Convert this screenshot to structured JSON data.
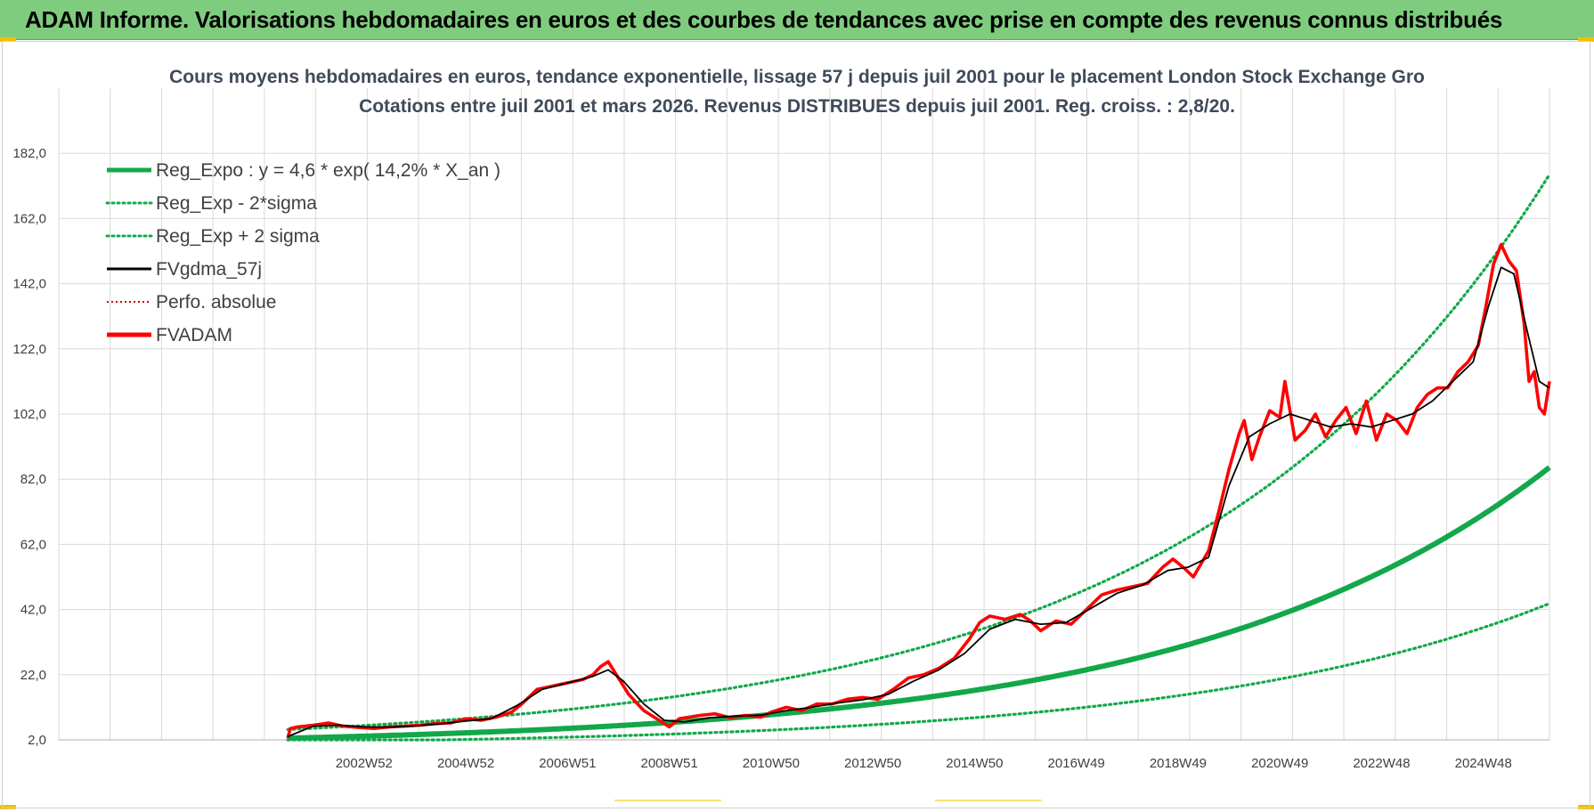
{
  "header": {
    "title": "ADAM Informe. Valorisations hebdomadaires en euros et des courbes de tendances avec prise en compte des revenus connus distribués"
  },
  "colors": {
    "banner": "#7fcc7f",
    "reg_green": "#12a84a",
    "fvgdma": "#000000",
    "fvadam": "#ff0000",
    "perfo": "#c00000",
    "grid": "#d9d9d9"
  },
  "chart_data": {
    "type": "line",
    "title_line1": "Cours moyens hebdomadaires en euros, tendance exponentielle, lissage 57 j depuis juil 2001 pour le placement London Stock Exchange Gro",
    "title_line2": "Cotations entre juil 2001 et mars 2026. Revenus DISTRIBUES depuis juil 2001. Reg. croiss. : 2,8/20.",
    "ylim": [
      2,
      202
    ],
    "y_ticks": [
      "2,0",
      "22,0",
      "42,0",
      "62,0",
      "82,0",
      "102,0",
      "122,0",
      "142,0",
      "162,0",
      "182,0"
    ],
    "y_tick_values": [
      2,
      22,
      42,
      62,
      82,
      102,
      122,
      142,
      162,
      182
    ],
    "x_range": [
      1997.0,
      2026.3
    ],
    "x_ticks": [
      {
        "label": "2002W52",
        "year": 2003.0
      },
      {
        "label": "2004W52",
        "year": 2005.0
      },
      {
        "label": "2006W51",
        "year": 2007.0
      },
      {
        "label": "2008W51",
        "year": 2009.0
      },
      {
        "label": "2010W50",
        "year": 2011.0
      },
      {
        "label": "2012W50",
        "year": 2013.0
      },
      {
        "label": "2014W50",
        "year": 2015.0
      },
      {
        "label": "2016W49",
        "year": 2017.0
      },
      {
        "label": "2018W49",
        "year": 2019.0
      },
      {
        "label": "2020W49",
        "year": 2021.0
      },
      {
        "label": "2022W48",
        "year": 2023.0
      },
      {
        "label": "2024W48",
        "year": 2025.0
      }
    ],
    "regression": {
      "a": 4.6,
      "rate": 0.142,
      "start_year": 2001.5,
      "end_year": 2026.3,
      "sigma_factor": 2.05
    },
    "legend": [
      {
        "label": "Reg_Expo : y = 4,6 * exp( 14,2% *  X_an )",
        "style": "solid-thick",
        "color": "#12a84a"
      },
      {
        "label": "Reg_Exp - 2*sigma",
        "style": "dotted",
        "color": "#12a84a"
      },
      {
        "label": "Reg_Exp + 2 sigma",
        "style": "dotted",
        "color": "#12a84a"
      },
      {
        "label": "FVgdma_57j",
        "style": "solid",
        "color": "#000000"
      },
      {
        "label": "Perfo. absolue",
        "style": "dotted-thin",
        "color": "#c00000"
      },
      {
        "label": "FVADAM",
        "style": "solid-thick",
        "color": "#ff0000"
      }
    ],
    "series": [
      {
        "name": "FVADAM",
        "x": [
          2001.5,
          2001.55,
          2001.7,
          2002.0,
          2002.3,
          2002.6,
          2002.9,
          2003.2,
          2003.5,
          2003.8,
          2004.1,
          2004.4,
          2004.7,
          2005.0,
          2005.3,
          2005.6,
          2005.9,
          2006.1,
          2006.4,
          2006.7,
          2007.0,
          2007.3,
          2007.5,
          2007.65,
          2007.8,
          2008.0,
          2008.2,
          2008.5,
          2008.8,
          2009.0,
          2009.2,
          2009.4,
          2009.6,
          2009.9,
          2010.2,
          2010.5,
          2010.8,
          2011.0,
          2011.3,
          2011.6,
          2011.9,
          2012.2,
          2012.5,
          2012.8,
          2013.1,
          2013.4,
          2013.7,
          2014.0,
          2014.3,
          2014.6,
          2014.9,
          2015.1,
          2015.3,
          2015.6,
          2015.9,
          2016.1,
          2016.3,
          2016.6,
          2016.9,
          2017.2,
          2017.5,
          2017.8,
          2018.1,
          2018.4,
          2018.7,
          2018.9,
          2019.1,
          2019.3,
          2019.6,
          2019.8,
          2020.0,
          2020.2,
          2020.3,
          2020.45,
          2020.6,
          2020.8,
          2021.0,
          2021.1,
          2021.3,
          2021.5,
          2021.7,
          2021.9,
          2022.1,
          2022.3,
          2022.5,
          2022.7,
          2022.9,
          2023.1,
          2023.3,
          2023.5,
          2023.7,
          2023.9,
          2024.1,
          2024.3,
          2024.5,
          2024.7,
          2024.9,
          2025.05,
          2025.2,
          2025.35,
          2025.5,
          2025.65,
          2025.8,
          2025.9,
          2026.0,
          2026.1,
          2026.2,
          2026.3
        ],
        "values": [
          2.5,
          5.5,
          6.0,
          6.5,
          7.2,
          6.2,
          5.8,
          5.5,
          6.0,
          6.2,
          6.5,
          7.0,
          7.2,
          8.5,
          8.0,
          9.0,
          10.5,
          13.0,
          17.5,
          18.5,
          19.5,
          20.5,
          22.0,
          24.5,
          26.0,
          21.0,
          16.0,
          11.0,
          8.0,
          6.0,
          8.5,
          9.0,
          9.5,
          10.0,
          8.8,
          9.5,
          9.0,
          10.5,
          12.0,
          11.0,
          13.0,
          13.0,
          14.5,
          15.0,
          14.5,
          17.5,
          21.0,
          22.0,
          24.0,
          27.0,
          33.0,
          38.0,
          40.0,
          39.0,
          40.5,
          38.5,
          35.5,
          38.5,
          37.5,
          42.0,
          46.5,
          48.0,
          49.0,
          50.0,
          55.0,
          57.5,
          55.0,
          52.0,
          60.0,
          72.0,
          85.0,
          96.0,
          100.0,
          88.0,
          95.0,
          103.0,
          101.0,
          112.0,
          94.0,
          97.0,
          102.0,
          95.0,
          100.0,
          104.0,
          96.0,
          106.0,
          94.0,
          102.0,
          100.0,
          96.0,
          104.0,
          108.0,
          110.0,
          110.0,
          115.0,
          118.0,
          123.0,
          135.0,
          148.0,
          154.0,
          149.0,
          146.0,
          130.0,
          112.0,
          115.0,
          104.0,
          102.0,
          112.0
        ]
      },
      {
        "name": "FVgdma_57j",
        "x": [
          2001.5,
          2002.0,
          2002.5,
          2003.0,
          2003.5,
          2004.0,
          2004.5,
          2005.0,
          2005.5,
          2006.0,
          2006.5,
          2007.0,
          2007.5,
          2007.8,
          2008.1,
          2008.5,
          2008.9,
          2009.3,
          2009.8,
          2010.3,
          2010.8,
          2011.3,
          2011.8,
          2012.3,
          2012.8,
          2013.3,
          2013.8,
          2014.3,
          2014.8,
          2015.3,
          2015.8,
          2016.3,
          2016.8,
          2017.3,
          2017.8,
          2018.3,
          2018.8,
          2019.2,
          2019.6,
          2020.0,
          2020.4,
          2020.8,
          2021.2,
          2021.6,
          2022.0,
          2022.4,
          2022.8,
          2023.2,
          2023.6,
          2024.0,
          2024.4,
          2024.8,
          2025.1,
          2025.35,
          2025.6,
          2025.9,
          2026.1,
          2026.3
        ],
        "values": [
          3.0,
          6.2,
          6.5,
          6.0,
          5.9,
          6.3,
          6.9,
          7.8,
          8.5,
          12.5,
          17.5,
          19.5,
          21.5,
          23.5,
          20.0,
          13.0,
          8.0,
          7.5,
          8.8,
          9.3,
          9.6,
          11.0,
          12.0,
          13.3,
          14.3,
          16.0,
          20.0,
          23.5,
          28.5,
          36.0,
          39.0,
          37.5,
          38.0,
          42.5,
          47.0,
          49.5,
          54.0,
          55.0,
          58.0,
          80.0,
          95.0,
          99.0,
          102.0,
          100.0,
          98.0,
          99.0,
          98.0,
          100.0,
          102.0,
          106.0,
          112.0,
          118.0,
          135.0,
          147.0,
          145.0,
          125.0,
          112.0,
          110.0
        ]
      }
    ]
  }
}
